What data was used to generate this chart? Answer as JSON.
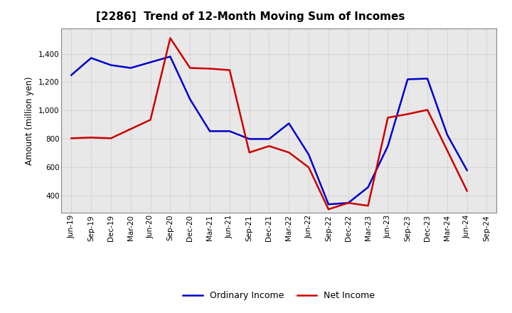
{
  "title": "[2286]  Trend of 12-Month Moving Sum of Incomes",
  "ylabel": "Amount (million yen)",
  "xlabels": [
    "Jun-19",
    "Sep-19",
    "Dec-19",
    "Mar-20",
    "Jun-20",
    "Sep-20",
    "Dec-20",
    "Mar-21",
    "Jun-21",
    "Sep-21",
    "Dec-21",
    "Mar-22",
    "Jun-22",
    "Sep-22",
    "Dec-22",
    "Mar-23",
    "Jun-23",
    "Sep-23",
    "Dec-23",
    "Mar-24",
    "Jun-24",
    "Sep-24"
  ],
  "ordinary_income": [
    1250,
    1370,
    1320,
    1300,
    1340,
    1380,
    1080,
    855,
    855,
    800,
    800,
    910,
    690,
    340,
    350,
    460,
    750,
    1220,
    1225,
    830,
    580,
    null
  ],
  "net_income": [
    805,
    810,
    805,
    870,
    935,
    1510,
    1300,
    1295,
    1285,
    705,
    750,
    705,
    600,
    305,
    350,
    330,
    950,
    975,
    1005,
    null,
    435,
    null
  ],
  "ordinary_color": "#0000cc",
  "net_color": "#cc0000",
  "ylim": [
    280,
    1580
  ],
  "yticks": [
    400,
    600,
    800,
    1000,
    1200,
    1400
  ],
  "background_color": "#ffffff",
  "plot_bg_color": "#e8e8e8",
  "grid_color": "#bbbbbb",
  "title_fontsize": 11,
  "label_fontsize": 8.5,
  "tick_fontsize": 7.5
}
